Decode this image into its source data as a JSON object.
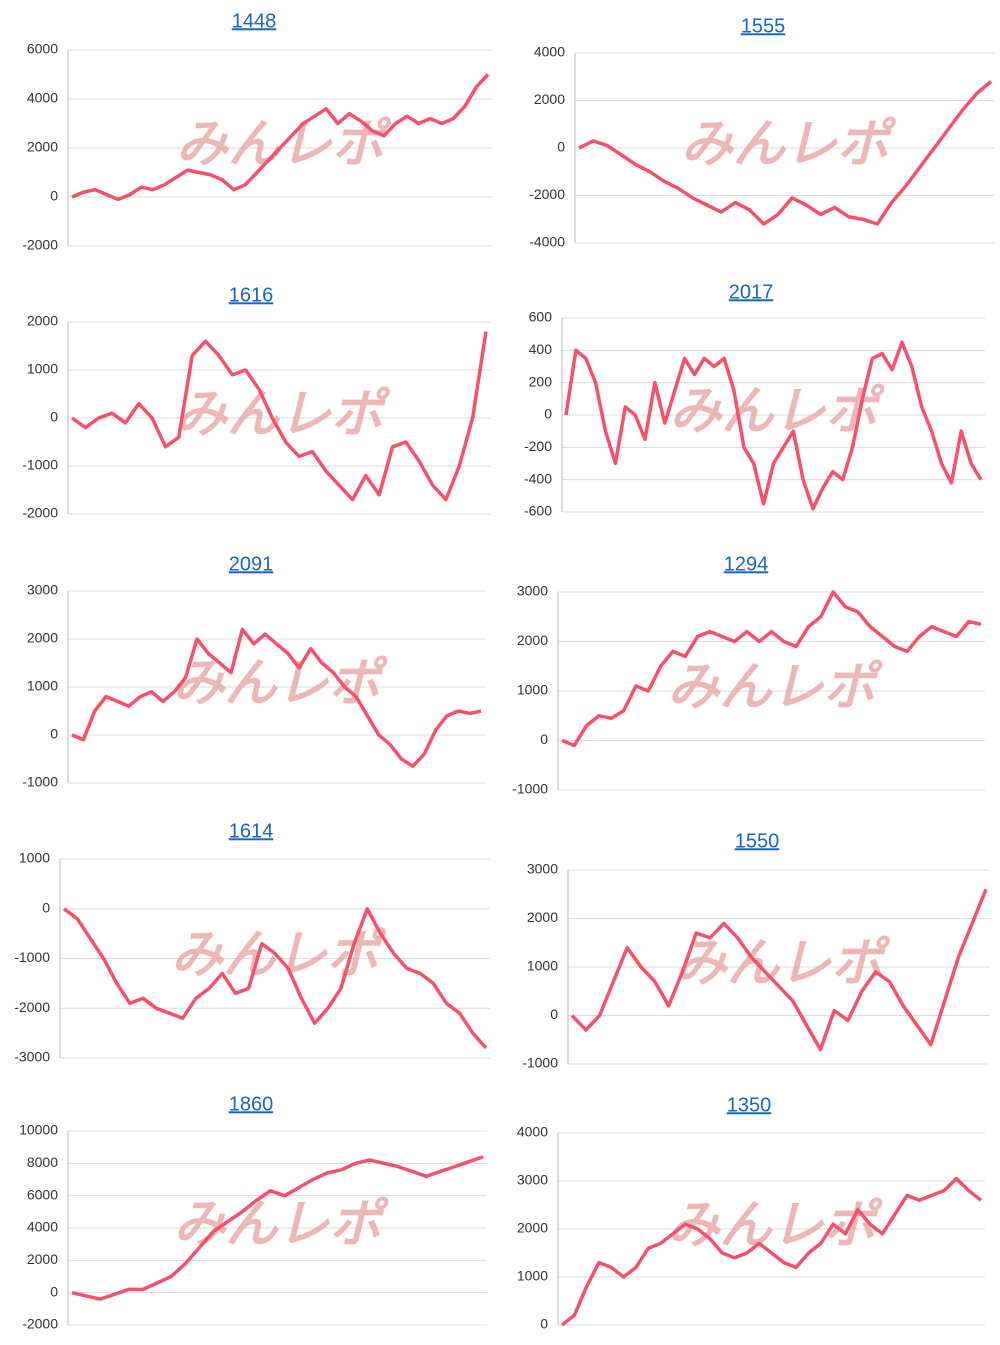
{
  "watermark": "みんレポ",
  "chart_data": [
    {
      "type": "line",
      "title": "1448",
      "color": "#f7506a",
      "ylim": [
        -2000,
        6000
      ],
      "yticks": [
        -2000,
        0,
        2000,
        4000,
        6000
      ],
      "grid": true,
      "values": [
        0,
        200,
        300,
        100,
        -100,
        100,
        400,
        300,
        500,
        800,
        1100,
        1000,
        900,
        700,
        300,
        500,
        1000,
        1500,
        2000,
        2500,
        3000,
        3300,
        3600,
        3000,
        3400,
        3100,
        2700,
        2500,
        3000,
        3300,
        3000,
        3200,
        3000,
        3200,
        3700,
        4500,
        5000
      ]
    },
    {
      "type": "line",
      "title": "1555",
      "color": "#f7506a",
      "ylim": [
        -4000,
        4000
      ],
      "yticks": [
        -4000,
        -2000,
        0,
        2000,
        4000
      ],
      "grid": true,
      "values": [
        0,
        300,
        100,
        -300,
        -700,
        -1000,
        -1400,
        -1700,
        -2100,
        -2400,
        -2700,
        -2300,
        -2600,
        -3200,
        -2800,
        -2100,
        -2400,
        -2800,
        -2500,
        -2900,
        -3000,
        -3200,
        -2300,
        -1600,
        -800,
        0,
        800,
        1600,
        2300,
        2800
      ]
    },
    {
      "type": "line",
      "title": "1616",
      "color": "#f7506a",
      "ylim": [
        -2000,
        2000
      ],
      "yticks": [
        -2000,
        -1000,
        0,
        1000,
        2000
      ],
      "grid": true,
      "values": [
        0,
        -200,
        0,
        100,
        -100,
        300,
        0,
        -600,
        -400,
        1300,
        1600,
        1300,
        900,
        1000,
        600,
        0,
        -500,
        -800,
        -700,
        -1100,
        -1400,
        -1700,
        -1200,
        -1600,
        -600,
        -500,
        -900,
        -1400,
        -1700,
        -1000,
        0,
        1800
      ]
    },
    {
      "type": "line",
      "title": "2017",
      "color": "#f7506a",
      "ylim": [
        -600,
        600
      ],
      "yticks": [
        -600,
        -400,
        -200,
        0,
        200,
        400,
        600
      ],
      "grid": true,
      "values": [
        0,
        400,
        350,
        200,
        -100,
        -300,
        50,
        0,
        -150,
        200,
        -50,
        150,
        350,
        250,
        350,
        300,
        350,
        150,
        -200,
        -300,
        -550,
        -300,
        -200,
        -100,
        -400,
        -580,
        -450,
        -350,
        -400,
        -200,
        100,
        350,
        380,
        280,
        450,
        300,
        50,
        -100,
        -300,
        -420,
        -100,
        -300,
        -400
      ]
    },
    {
      "type": "line",
      "title": "2091",
      "color": "#f7506a",
      "ylim": [
        -1000,
        3000
      ],
      "yticks": [
        -1000,
        0,
        1000,
        2000,
        3000
      ],
      "grid": true,
      "values": [
        0,
        -100,
        500,
        800,
        700,
        600,
        800,
        900,
        700,
        900,
        1200,
        2000,
        1700,
        1500,
        1300,
        2200,
        1900,
        2100,
        1900,
        1700,
        1400,
        1800,
        1500,
        1300,
        1000,
        800,
        400,
        0,
        -200,
        -500,
        -650,
        -400,
        100,
        400,
        500,
        450,
        500
      ]
    },
    {
      "type": "line",
      "title": "1294",
      "color": "#f7506a",
      "ylim": [
        -1000,
        3000
      ],
      "yticks": [
        -1000,
        0,
        1000,
        2000,
        3000
      ],
      "grid": true,
      "values": [
        0,
        -100,
        300,
        500,
        450,
        600,
        1100,
        1000,
        1500,
        1800,
        1700,
        2100,
        2200,
        2100,
        2000,
        2200,
        2000,
        2200,
        2000,
        1900,
        2300,
        2500,
        3000,
        2700,
        2600,
        2300,
        2100,
        1900,
        1800,
        2100,
        2300,
        2200,
        2100,
        2400,
        2350
      ]
    },
    {
      "type": "line",
      "title": "1614",
      "color": "#f7506a",
      "ylim": [
        -3000,
        1000
      ],
      "yticks": [
        -3000,
        -2000,
        -1000,
        0,
        1000
      ],
      "grid": true,
      "values": [
        0,
        -200,
        -600,
        -1000,
        -1500,
        -1900,
        -1800,
        -2000,
        -2100,
        -2200,
        -1800,
        -1600,
        -1300,
        -1700,
        -1600,
        -700,
        -900,
        -1200,
        -1800,
        -2300,
        -2000,
        -1600,
        -700,
        0,
        -500,
        -900,
        -1200,
        -1300,
        -1500,
        -1900,
        -2100,
        -2500,
        -2800
      ]
    },
    {
      "type": "line",
      "title": "1550",
      "color": "#f7506a",
      "ylim": [
        -1000,
        3000
      ],
      "yticks": [
        -1000,
        0,
        1000,
        2000,
        3000
      ],
      "grid": true,
      "values": [
        0,
        -300,
        0,
        700,
        1400,
        1000,
        700,
        200,
        900,
        1700,
        1600,
        1900,
        1600,
        1200,
        900,
        600,
        300,
        -200,
        -700,
        100,
        -100,
        500,
        900,
        700,
        200,
        -200,
        -600,
        300,
        1200,
        1900,
        2600
      ]
    },
    {
      "type": "line",
      "title": "1860",
      "color": "#f7506a",
      "ylim": [
        -2000,
        10000
      ],
      "yticks": [
        -2000,
        0,
        2000,
        4000,
        6000,
        8000,
        10000
      ],
      "grid": true,
      "values": [
        0,
        -200,
        -400,
        -100,
        200,
        200,
        600,
        1000,
        1800,
        2800,
        3800,
        4400,
        5000,
        5700,
        6300,
        6000,
        6500,
        7000,
        7400,
        7600,
        8000,
        8200,
        8000,
        7800,
        7500,
        7200,
        7500,
        7800,
        8100,
        8400
      ]
    },
    {
      "type": "line",
      "title": "1350",
      "color": "#f7506a",
      "ylim": [
        0,
        4000
      ],
      "yticks": [
        0,
        1000,
        2000,
        3000,
        4000
      ],
      "grid": true,
      "values": [
        0,
        200,
        800,
        1300,
        1200,
        1000,
        1200,
        1600,
        1700,
        1900,
        2100,
        2000,
        1800,
        1500,
        1400,
        1500,
        1700,
        1500,
        1300,
        1200,
        1500,
        1700,
        2100,
        1900,
        2400,
        2100,
        1900,
        2300,
        2700,
        2600,
        2700,
        2800,
        3050,
        2800,
        2600
      ]
    }
  ]
}
